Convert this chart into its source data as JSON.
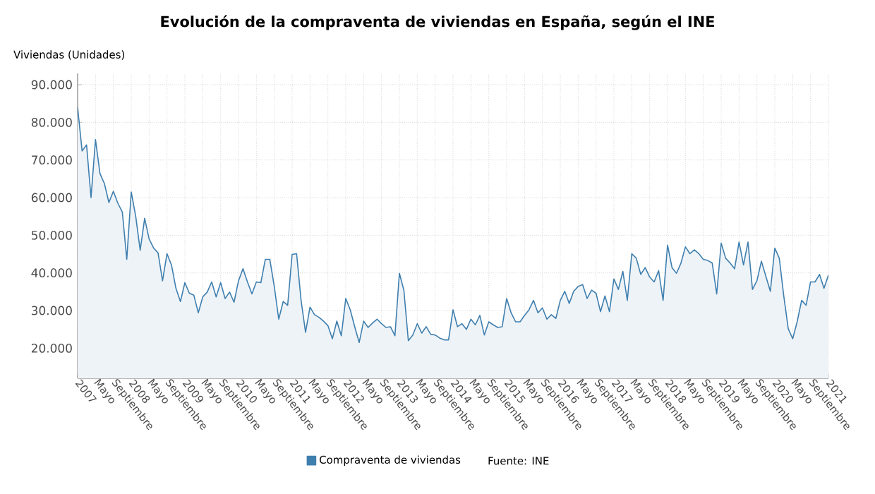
{
  "chart_data": {
    "type": "area",
    "title": "Evolución de la compraventa de viviendas en España, según el INE",
    "ylabel": "Viviendas (Unidades)",
    "annotations": [
      "Fuente: INE"
    ],
    "x": [
      "2007-01",
      "2007-02",
      "2007-03",
      "2007-04",
      "2007-05",
      "2007-06",
      "2007-07",
      "2007-08",
      "2007-09",
      "2007-10",
      "2007-11",
      "2007-12",
      "2008-01",
      "2008-02",
      "2008-03",
      "2008-04",
      "2008-05",
      "2008-06",
      "2008-07",
      "2008-08",
      "2008-09",
      "2008-10",
      "2008-11",
      "2008-12",
      "2009-01",
      "2009-02",
      "2009-03",
      "2009-04",
      "2009-05",
      "2009-06",
      "2009-07",
      "2009-08",
      "2009-09",
      "2009-10",
      "2009-11",
      "2009-12",
      "2010-01",
      "2010-02",
      "2010-03",
      "2010-04",
      "2010-05",
      "2010-06",
      "2010-07",
      "2010-08",
      "2010-09",
      "2010-10",
      "2010-11",
      "2010-12",
      "2011-01",
      "2011-02",
      "2011-03",
      "2011-04",
      "2011-05",
      "2011-06",
      "2011-07",
      "2011-08",
      "2011-09",
      "2011-10",
      "2011-11",
      "2011-12",
      "2012-01",
      "2012-02",
      "2012-03",
      "2012-04",
      "2012-05",
      "2012-06",
      "2012-07",
      "2012-08",
      "2012-09",
      "2012-10",
      "2012-11",
      "2012-12",
      "2013-01",
      "2013-02",
      "2013-03",
      "2013-04",
      "2013-05",
      "2013-06",
      "2013-07",
      "2013-08",
      "2013-09",
      "2013-10",
      "2013-11",
      "2013-12",
      "2014-01",
      "2014-02",
      "2014-03",
      "2014-04",
      "2014-05",
      "2014-06",
      "2014-07",
      "2014-08",
      "2014-09",
      "2014-10",
      "2014-11",
      "2014-12",
      "2015-01",
      "2015-02",
      "2015-03",
      "2015-04",
      "2015-05",
      "2015-06",
      "2015-07",
      "2015-08",
      "2015-09",
      "2015-10",
      "2015-11",
      "2015-12",
      "2016-01",
      "2016-02",
      "2016-03",
      "2016-04",
      "2016-05",
      "2016-06",
      "2016-07",
      "2016-08",
      "2016-09",
      "2016-10",
      "2016-11",
      "2016-12",
      "2017-01",
      "2017-02",
      "2017-03",
      "2017-04",
      "2017-05",
      "2017-06",
      "2017-07",
      "2017-08",
      "2017-09",
      "2017-10",
      "2017-11",
      "2017-12",
      "2018-01",
      "2018-02",
      "2018-03",
      "2018-04",
      "2018-05",
      "2018-06",
      "2018-07",
      "2018-08",
      "2018-09",
      "2018-10",
      "2018-11",
      "2018-12",
      "2019-01",
      "2019-02",
      "2019-03",
      "2019-04",
      "2019-05",
      "2019-06",
      "2019-07",
      "2019-08",
      "2019-09",
      "2019-10",
      "2019-11",
      "2019-12",
      "2020-01",
      "2020-02",
      "2020-03",
      "2020-04",
      "2020-05",
      "2020-06",
      "2020-07",
      "2020-08",
      "2020-09",
      "2020-10",
      "2020-11",
      "2020-12",
      "2021-01"
    ],
    "series": [
      {
        "name": "Compraventa de viviendas",
        "color": "#3f7fae",
        "values": [
          84000,
          72400,
          74000,
          60000,
          75400,
          66400,
          63700,
          58700,
          61700,
          58500,
          56200,
          43600,
          61500,
          55000,
          46000,
          54500,
          49000,
          46600,
          45300,
          37900,
          45100,
          42100,
          35900,
          32400,
          37400,
          34600,
          34100,
          29400,
          33600,
          34900,
          37600,
          33600,
          37400,
          33200,
          34900,
          32200,
          37900,
          41100,
          37600,
          34400,
          37600,
          37400,
          43600,
          43600,
          36400,
          27700,
          32400,
          31400,
          44900,
          45100,
          32700,
          24200,
          30900,
          28900,
          28200,
          27200,
          26000,
          22500,
          27200,
          23300,
          33200,
          30200,
          25700,
          21500,
          27200,
          25500,
          26700,
          27700,
          26500,
          25500,
          25700,
          23300,
          39900,
          35400,
          22000,
          23500,
          26500,
          24000,
          25700,
          23700,
          23500,
          22700,
          22200,
          22200,
          30200,
          25700,
          26500,
          25000,
          27700,
          26200,
          28700,
          23500,
          27000,
          26200,
          25500,
          25700,
          33200,
          29400,
          27000,
          27000,
          28700,
          30200,
          32700,
          29400,
          30700,
          27700,
          28900,
          27900,
          32700,
          35100,
          31900,
          35100,
          36400,
          36900,
          33200,
          35400,
          34600,
          29700,
          33900,
          29700,
          38400,
          35600,
          40400,
          32700,
          45100,
          43900,
          39600,
          41400,
          38900,
          37600,
          40600,
          32700,
          47400,
          41400,
          39900,
          42600,
          46900,
          45100,
          46100,
          45100,
          43600,
          43300,
          42600,
          34400,
          47900,
          43900,
          42600,
          41100,
          48200,
          42100,
          48200,
          35600,
          37900,
          43100,
          39100,
          35100,
          46600,
          43900,
          33900,
          25200,
          22500,
          27000,
          32700,
          31400,
          37600,
          37600,
          39600,
          35900,
          39400
        ]
      }
    ],
    "xlim": [
      "2007-01",
      "2021-01"
    ],
    "xticks": [
      {
        "value": "2007-01",
        "label": "2007"
      },
      {
        "value": "2007-05",
        "label": "Mayo"
      },
      {
        "value": "2007-09",
        "label": "Septiembre"
      },
      {
        "value": "2008-01",
        "label": "2008"
      },
      {
        "value": "2008-05",
        "label": "Mayo"
      },
      {
        "value": "2008-09",
        "label": "Septiembre"
      },
      {
        "value": "2009-01",
        "label": "2009"
      },
      {
        "value": "2009-05",
        "label": "Mayo"
      },
      {
        "value": "2009-09",
        "label": "Septiembre"
      },
      {
        "value": "2010-01",
        "label": "2010"
      },
      {
        "value": "2010-05",
        "label": "Mayo"
      },
      {
        "value": "2010-09",
        "label": "Septiembre"
      },
      {
        "value": "2011-01",
        "label": "2011"
      },
      {
        "value": "2011-05",
        "label": "Mayo"
      },
      {
        "value": "2011-09",
        "label": "Septiembre"
      },
      {
        "value": "2012-01",
        "label": "2012"
      },
      {
        "value": "2012-05",
        "label": "Mayo"
      },
      {
        "value": "2012-09",
        "label": "Septiembre"
      },
      {
        "value": "2013-01",
        "label": "2013"
      },
      {
        "value": "2013-05",
        "label": "Mayo"
      },
      {
        "value": "2013-09",
        "label": "Septiembre"
      },
      {
        "value": "2014-01",
        "label": "2014"
      },
      {
        "value": "2014-05",
        "label": "Mayo"
      },
      {
        "value": "2014-09",
        "label": "Septiembre"
      },
      {
        "value": "2015-01",
        "label": "2015"
      },
      {
        "value": "2015-05",
        "label": "Mayo"
      },
      {
        "value": "2015-09",
        "label": "Septiembre"
      },
      {
        "value": "2016-01",
        "label": "2016"
      },
      {
        "value": "2016-05",
        "label": "Mayo"
      },
      {
        "value": "2016-09",
        "label": "Septiembre"
      },
      {
        "value": "2017-01",
        "label": "2017"
      },
      {
        "value": "2017-05",
        "label": "Mayo"
      },
      {
        "value": "2017-09",
        "label": "Septiembre"
      },
      {
        "value": "2018-01",
        "label": "2018"
      },
      {
        "value": "2018-05",
        "label": "Mayo"
      },
      {
        "value": "2018-09",
        "label": "Septiembre"
      },
      {
        "value": "2019-01",
        "label": "2019"
      },
      {
        "value": "2019-05",
        "label": "Mayo"
      },
      {
        "value": "2019-09",
        "label": "Septiembre"
      },
      {
        "value": "2020-01",
        "label": "2020"
      },
      {
        "value": "2020-05",
        "label": "Mayo"
      },
      {
        "value": "2020-09",
        "label": "Septiembre"
      },
      {
        "value": "2021-01",
        "label": "2021"
      }
    ],
    "ylim": [
      12000,
      93000
    ],
    "yticks": [
      {
        "value": 20000,
        "label": "20.000"
      },
      {
        "value": 30000,
        "label": "30.000"
      },
      {
        "value": 40000,
        "label": "40.000"
      },
      {
        "value": 50000,
        "label": "50.000"
      },
      {
        "value": 60000,
        "label": "60.000"
      },
      {
        "value": 70000,
        "label": "70.000"
      },
      {
        "value": 80000,
        "label": "80.000"
      },
      {
        "value": 90000,
        "label": "90.000"
      }
    ],
    "grid": true,
    "legend": "bottom"
  }
}
